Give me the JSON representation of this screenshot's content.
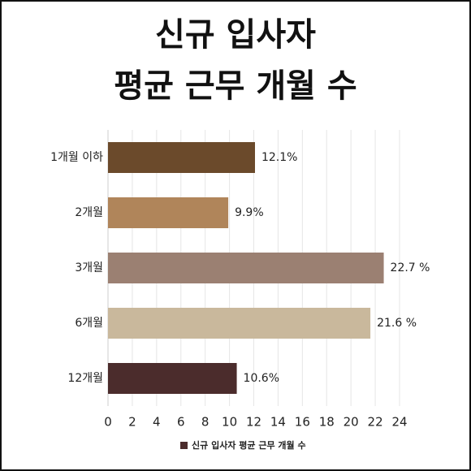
{
  "chart_data": {
    "type": "bar",
    "orientation": "horizontal",
    "title": [
      "신규 입사자",
      "평균 근무 개월 수"
    ],
    "categories": [
      "1개월 이하",
      "2개월",
      "3개월",
      "6개월",
      "12개월"
    ],
    "series": [
      {
        "name": "신규 입사자 평균 근무 개월 수",
        "color": "#4b2c2c",
        "colors": [
          "#6b4a2b",
          "#b0855a",
          "#9b8072",
          "#c9b89c",
          "#4b2c2c"
        ],
        "values": [
          12.1,
          9.9,
          22.7,
          21.6,
          10.6
        ],
        "value_labels": [
          "12.1%",
          "9.9%",
          "22.7 %",
          "21.6 %",
          "10.6%"
        ]
      }
    ],
    "xlim": [
      0,
      24
    ],
    "xticks": [
      0,
      2,
      4,
      6,
      8,
      10,
      12,
      14,
      16,
      18,
      20,
      22,
      24
    ],
    "grid": true,
    "legend": "bottom"
  }
}
